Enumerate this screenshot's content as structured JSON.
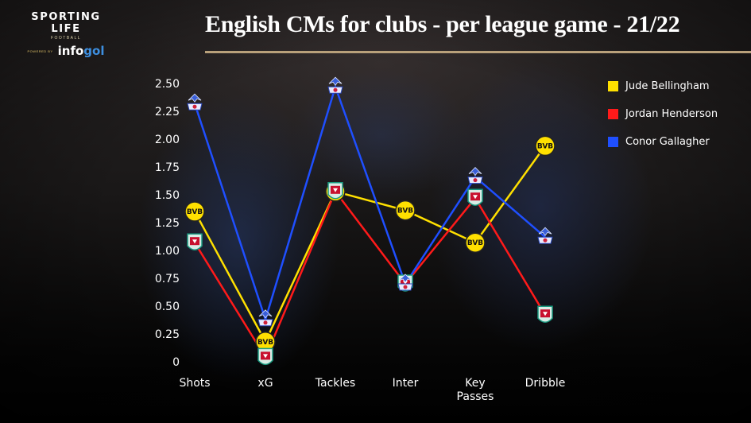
{
  "brand": {
    "name": "SPORTING LIFE",
    "sub": "FOOTBALL",
    "powered": "POWERED BY",
    "partner_a": "info",
    "partner_b": "gol"
  },
  "header": {
    "title": "English CMs for clubs - per league game - 21/22"
  },
  "colors": {
    "title_rule": "#b8a07a",
    "bellingham": "#ffe000",
    "henderson": "#ff1a1a",
    "gallagher": "#1f4fff"
  },
  "legend": [
    {
      "name": "Jude Bellingham",
      "color": "#ffe000",
      "club_icon": "bvb-crest"
    },
    {
      "name": "Jordan Henderson",
      "color": "#ff1a1a",
      "club_icon": "liverpool-crest"
    },
    {
      "name": "Conor Gallagher",
      "color": "#1f4fff",
      "club_icon": "crystal-palace-crest"
    }
  ],
  "chart_data": {
    "type": "line",
    "title": "English CMs for clubs - per league game - 21/22",
    "xlabel": "",
    "ylabel": "",
    "categories": [
      "Shots",
      "xG",
      "Tackles",
      "Inter",
      "Key Passes",
      "Dribble"
    ],
    "yticks": [
      "0",
      "0.25",
      "0.50",
      "0.75",
      "1.00",
      "1.25",
      "1.50",
      "1.75",
      "2.00",
      "2.25",
      "2.50"
    ],
    "ylim": [
      0,
      2.5
    ],
    "grid": false,
    "legend_position": "top-right",
    "series": [
      {
        "name": "Jude Bellingham",
        "color": "#ffe000",
        "marker": "bvb-crest",
        "values": [
          1.35,
          0.18,
          1.53,
          1.36,
          1.07,
          1.94
        ]
      },
      {
        "name": "Jordan Henderson",
        "color": "#ff1a1a",
        "marker": "liverpool-crest",
        "values": [
          1.07,
          0.04,
          1.53,
          0.7,
          1.47,
          0.42
        ]
      },
      {
        "name": "Conor Gallagher",
        "color": "#1f4fff",
        "marker": "crystal-palace-crest",
        "values": [
          2.32,
          0.38,
          2.47,
          0.7,
          1.66,
          1.12
        ]
      }
    ]
  }
}
